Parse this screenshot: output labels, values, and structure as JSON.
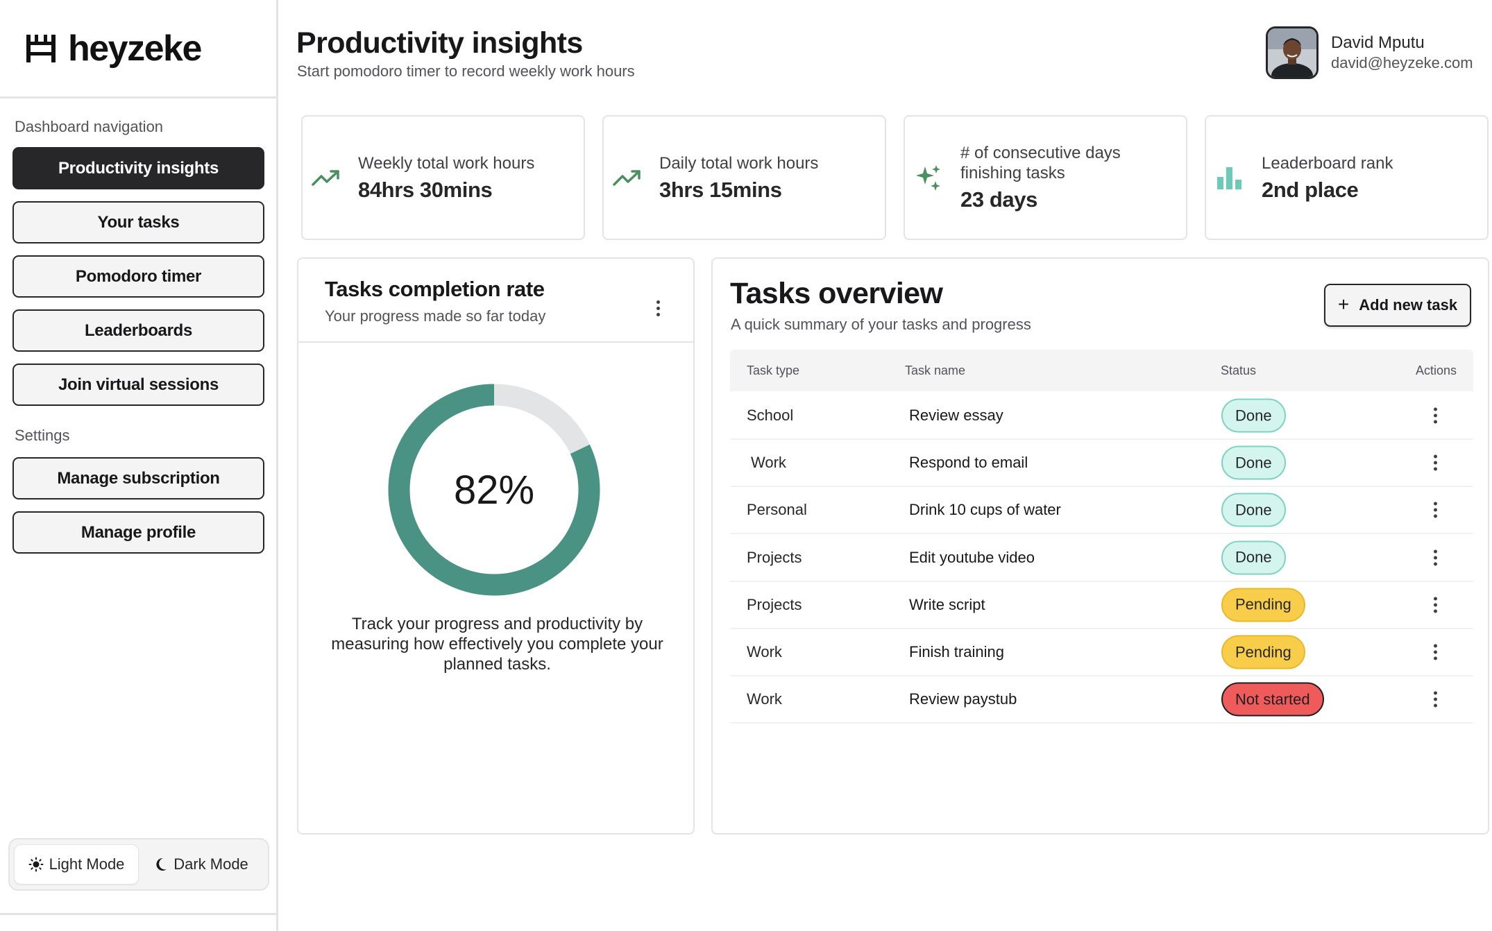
{
  "brand": {
    "name": "heyzeke"
  },
  "sidebar": {
    "nav_heading": "Dashboard navigation",
    "nav_items": [
      {
        "label": "Productivity insights",
        "active": true
      },
      {
        "label": "Your tasks",
        "active": false
      },
      {
        "label": "Pomodoro timer",
        "active": false
      },
      {
        "label": "Leaderboards",
        "active": false
      },
      {
        "label": "Join virtual sessions",
        "active": false
      }
    ],
    "settings_heading": "Settings",
    "settings_items": [
      {
        "label": "Manage subscription"
      },
      {
        "label": "Manage profile"
      }
    ],
    "mode": {
      "light_label": "Light Mode",
      "dark_label": "Dark Mode",
      "selected": "light"
    }
  },
  "header": {
    "title": "Productivity insights",
    "subtitle": "Start pomodoro timer to record weekly work hours"
  },
  "user": {
    "name": "David Mputu",
    "email": "david@heyzeke.com"
  },
  "stats": [
    {
      "icon": "trending-up-icon",
      "label": "Weekly total work hours",
      "value": "84hrs 30mins"
    },
    {
      "icon": "trending-up-icon",
      "label": "Daily total work hours",
      "value": "3hrs 15mins"
    },
    {
      "icon": "sparkles-icon",
      "label": "# of consecutive days finishing tasks",
      "value": "23 days"
    },
    {
      "icon": "bar-chart-icon",
      "label": "Leaderboard rank",
      "value": "2nd place"
    }
  ],
  "completion": {
    "title": "Tasks completion rate",
    "subtitle": "Your progress made so far today",
    "percent_label": "82%",
    "percent": 82,
    "description": "Track your progress and productivity by measuring how effectively you complete your planned tasks."
  },
  "tasks": {
    "title": "Tasks overview",
    "subtitle": "A quick summary of your tasks and progress",
    "add_button": "Add new task",
    "columns": {
      "type": "Task type",
      "name": "Task name",
      "status": "Status",
      "actions": "Actions"
    },
    "rows": [
      {
        "type": "School",
        "name": "Review essay",
        "status": "Done",
        "status_kind": "done"
      },
      {
        "type": "Work",
        "name": "Respond to email",
        "status": "Done",
        "status_kind": "done"
      },
      {
        "type": "Personal",
        "name": "Drink 10 cups of water",
        "status": "Done",
        "status_kind": "done"
      },
      {
        "type": "Projects",
        "name": "Edit youtube video",
        "status": "Done",
        "status_kind": "done"
      },
      {
        "type": "Projects",
        "name": "Write script",
        "status": "Pending",
        "status_kind": "pending"
      },
      {
        "type": "Work",
        "name": "Finish training",
        "status": "Pending",
        "status_kind": "pending"
      },
      {
        "type": "Work",
        "name": "Review paystub",
        "status": "Not started",
        "status_kind": "notstarted"
      }
    ]
  },
  "colors": {
    "accent_green": "#4a9384",
    "icon_green": "#4a8f5f",
    "icon_teal": "#6ccab8",
    "donut_track": "#e2e4e6",
    "done_bg": "#d4f4ee",
    "pending_bg": "#f7cd4a",
    "notstarted_bg": "#ef5b5b"
  }
}
